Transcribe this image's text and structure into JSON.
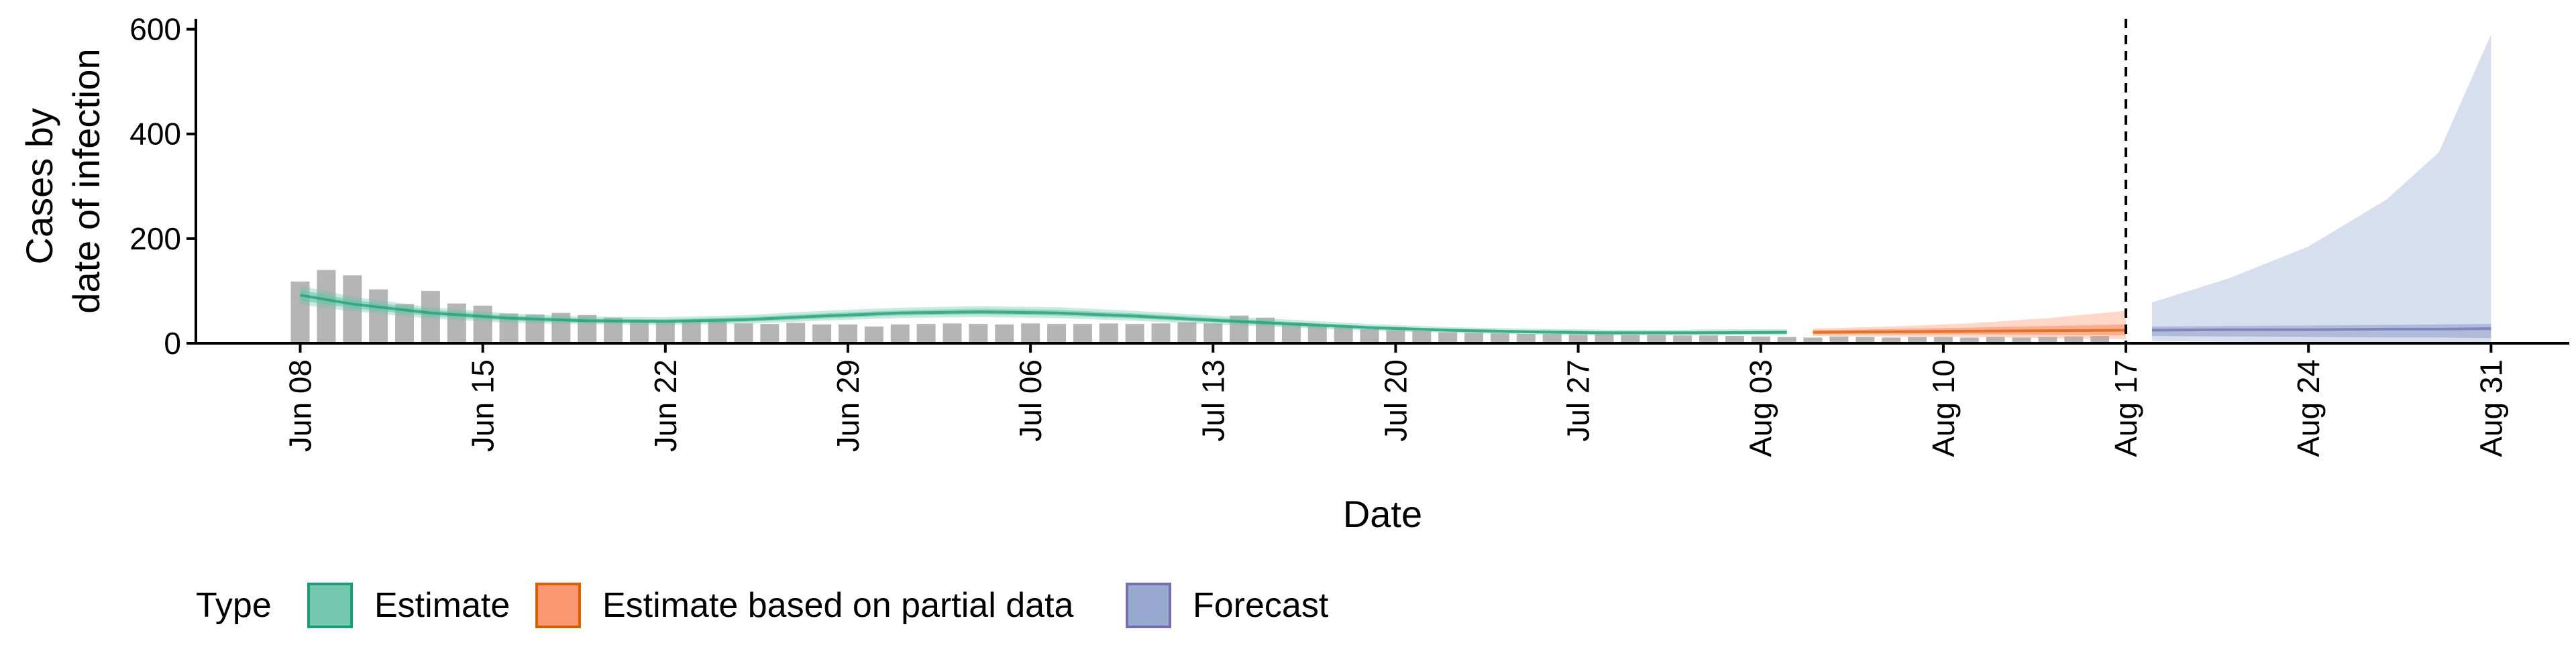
{
  "chart_data": {
    "type": "bar",
    "title": "",
    "xlabel": "Date",
    "ylabel_lines": [
      "Cases by",
      "date of infection"
    ],
    "ylim": [
      0,
      620
    ],
    "y_ticks": [
      0,
      200,
      400,
      600
    ],
    "x_range": [
      "2020-06-04",
      "2020-09-03"
    ],
    "x_ticks": [
      {
        "date": "2020-06-08",
        "label": "Jun 08"
      },
      {
        "date": "2020-06-15",
        "label": "Jun 15"
      },
      {
        "date": "2020-06-22",
        "label": "Jun 22"
      },
      {
        "date": "2020-06-29",
        "label": "Jun 29"
      },
      {
        "date": "2020-07-06",
        "label": "Jul 06"
      },
      {
        "date": "2020-07-13",
        "label": "Jul 13"
      },
      {
        "date": "2020-07-20",
        "label": "Jul 20"
      },
      {
        "date": "2020-07-27",
        "label": "Jul 27"
      },
      {
        "date": "2020-08-03",
        "label": "Aug 03"
      },
      {
        "date": "2020-08-10",
        "label": "Aug 10"
      },
      {
        "date": "2020-08-17",
        "label": "Aug 17"
      },
      {
        "date": "2020-08-24",
        "label": "Aug 24"
      },
      {
        "date": "2020-08-31",
        "label": "Aug 31"
      }
    ],
    "vline_date": "2020-08-17",
    "bars": {
      "start_date": "2020-06-08",
      "values": [
        118,
        140,
        130,
        103,
        75,
        100,
        76,
        72,
        57,
        55,
        58,
        54,
        49,
        43,
        42,
        44,
        42,
        38,
        37,
        39,
        36,
        36,
        32,
        36,
        37,
        38,
        37,
        36,
        38,
        37,
        37,
        38,
        37,
        38,
        40,
        38,
        53,
        49,
        37,
        34,
        30,
        27,
        25,
        23,
        21,
        20,
        19,
        18,
        18,
        17,
        17,
        16,
        16,
        15,
        15,
        14,
        13,
        12,
        11,
        13,
        12,
        11,
        12,
        12,
        11,
        12,
        11,
        12,
        13,
        14
      ],
      "color": "#b5b5b5"
    },
    "series": [
      {
        "name": "Estimate",
        "color": "#1b9e77",
        "fill": "#66c2a5",
        "points": [
          {
            "date": "2020-06-08",
            "mid": 92,
            "lo50": 82,
            "hi50": 102,
            "lo90": 74,
            "hi90": 110
          },
          {
            "date": "2020-06-10",
            "mid": 75,
            "lo50": 67,
            "hi50": 83,
            "lo90": 61,
            "hi90": 89
          },
          {
            "date": "2020-06-13",
            "mid": 58,
            "lo50": 52,
            "hi50": 64,
            "lo90": 47,
            "hi90": 69
          },
          {
            "date": "2020-06-16",
            "mid": 48,
            "lo50": 43,
            "hi50": 53,
            "lo90": 39,
            "hi90": 57
          },
          {
            "date": "2020-06-19",
            "mid": 43,
            "lo50": 39,
            "hi50": 47,
            "lo90": 36,
            "hi90": 51
          },
          {
            "date": "2020-06-22",
            "mid": 42,
            "lo50": 38,
            "hi50": 46,
            "lo90": 35,
            "hi90": 50
          },
          {
            "date": "2020-06-25",
            "mid": 45,
            "lo50": 41,
            "hi50": 50,
            "lo90": 37,
            "hi90": 54
          },
          {
            "date": "2020-06-28",
            "mid": 52,
            "lo50": 47,
            "hi50": 57,
            "lo90": 43,
            "hi90": 62
          },
          {
            "date": "2020-07-01",
            "mid": 58,
            "lo50": 53,
            "hi50": 63,
            "lo90": 48,
            "hi90": 68
          },
          {
            "date": "2020-07-04",
            "mid": 60,
            "lo50": 55,
            "hi50": 66,
            "lo90": 50,
            "hi90": 71
          },
          {
            "date": "2020-07-07",
            "mid": 58,
            "lo50": 53,
            "hi50": 64,
            "lo90": 48,
            "hi90": 69
          },
          {
            "date": "2020-07-10",
            "mid": 52,
            "lo50": 47,
            "hi50": 57,
            "lo90": 43,
            "hi90": 62
          },
          {
            "date": "2020-07-13",
            "mid": 44,
            "lo50": 40,
            "hi50": 49,
            "lo90": 36,
            "hi90": 53
          },
          {
            "date": "2020-07-16",
            "mid": 37,
            "lo50": 33,
            "hi50": 41,
            "lo90": 30,
            "hi90": 45
          },
          {
            "date": "2020-07-19",
            "mid": 30,
            "lo50": 27,
            "hi50": 33,
            "lo90": 24,
            "hi90": 37
          },
          {
            "date": "2020-07-22",
            "mid": 25,
            "lo50": 22,
            "hi50": 28,
            "lo90": 20,
            "hi90": 31
          },
          {
            "date": "2020-07-25",
            "mid": 22,
            "lo50": 19,
            "hi50": 25,
            "lo90": 17,
            "hi90": 28
          },
          {
            "date": "2020-07-28",
            "mid": 20,
            "lo50": 17,
            "hi50": 23,
            "lo90": 15,
            "hi90": 26
          },
          {
            "date": "2020-07-31",
            "mid": 20,
            "lo50": 17,
            "hi50": 23,
            "lo90": 15,
            "hi90": 26
          },
          {
            "date": "2020-08-04",
            "mid": 21,
            "lo50": 18,
            "hi50": 24,
            "lo90": 16,
            "hi90": 27
          }
        ]
      },
      {
        "name": "Estimate based on partial data",
        "color": "#d95f02",
        "fill": "#fc8d62",
        "points": [
          {
            "date": "2020-08-05",
            "mid": 21,
            "lo50": 17,
            "hi50": 25,
            "lo90": 14,
            "hi90": 28
          },
          {
            "date": "2020-08-08",
            "mid": 22,
            "lo50": 17,
            "hi50": 27,
            "lo90": 13,
            "hi90": 32
          },
          {
            "date": "2020-08-11",
            "mid": 23,
            "lo50": 17,
            "hi50": 30,
            "lo90": 12,
            "hi90": 38
          },
          {
            "date": "2020-08-14",
            "mid": 24,
            "lo50": 16,
            "hi50": 33,
            "lo90": 10,
            "hi90": 48
          },
          {
            "date": "2020-08-17",
            "mid": 25,
            "lo50": 15,
            "hi50": 36,
            "lo90": 8,
            "hi90": 62
          }
        ]
      },
      {
        "name": "Forecast",
        "color": "#7570b3",
        "fill": "#8da0cb",
        "points": [
          {
            "date": "2020-08-18",
            "mid": 25,
            "lo50": 14,
            "hi50": 32,
            "lo90": 4,
            "hi90": 78
          },
          {
            "date": "2020-08-21",
            "mid": 26,
            "lo50": 13,
            "hi50": 33,
            "lo90": 3,
            "hi90": 125
          },
          {
            "date": "2020-08-24",
            "mid": 26,
            "lo50": 12,
            "hi50": 34,
            "lo90": 2,
            "hi90": 185
          },
          {
            "date": "2020-08-27",
            "mid": 27,
            "lo50": 11,
            "hi50": 35,
            "lo90": 2,
            "hi90": 275
          },
          {
            "date": "2020-08-29",
            "mid": 27,
            "lo50": 11,
            "hi50": 36,
            "lo90": 1,
            "hi90": 365
          },
          {
            "date": "2020-08-31",
            "mid": 28,
            "lo50": 10,
            "hi50": 37,
            "lo90": 1,
            "hi90": 590
          }
        ]
      }
    ],
    "legend": {
      "title": "Type",
      "position": "bottom-left",
      "entries": [
        "Estimate",
        "Estimate based on partial data",
        "Forecast"
      ]
    },
    "grid": false
  }
}
